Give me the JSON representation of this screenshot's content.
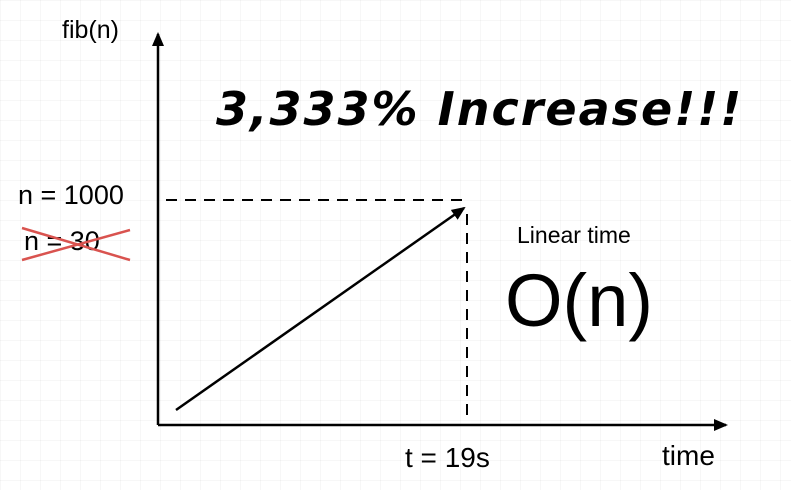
{
  "y_axis_label": "fib(n)",
  "x_axis_label": "time",
  "marker_new": "n = 1000",
  "marker_old": "n = 30",
  "time_marker": "t = 19s",
  "headline": "3,333% Increase!!!",
  "complexity_label": "Linear time",
  "complexity_notation": "O(n)",
  "colors": {
    "strike": "#d9534f",
    "ink": "#000000"
  }
}
